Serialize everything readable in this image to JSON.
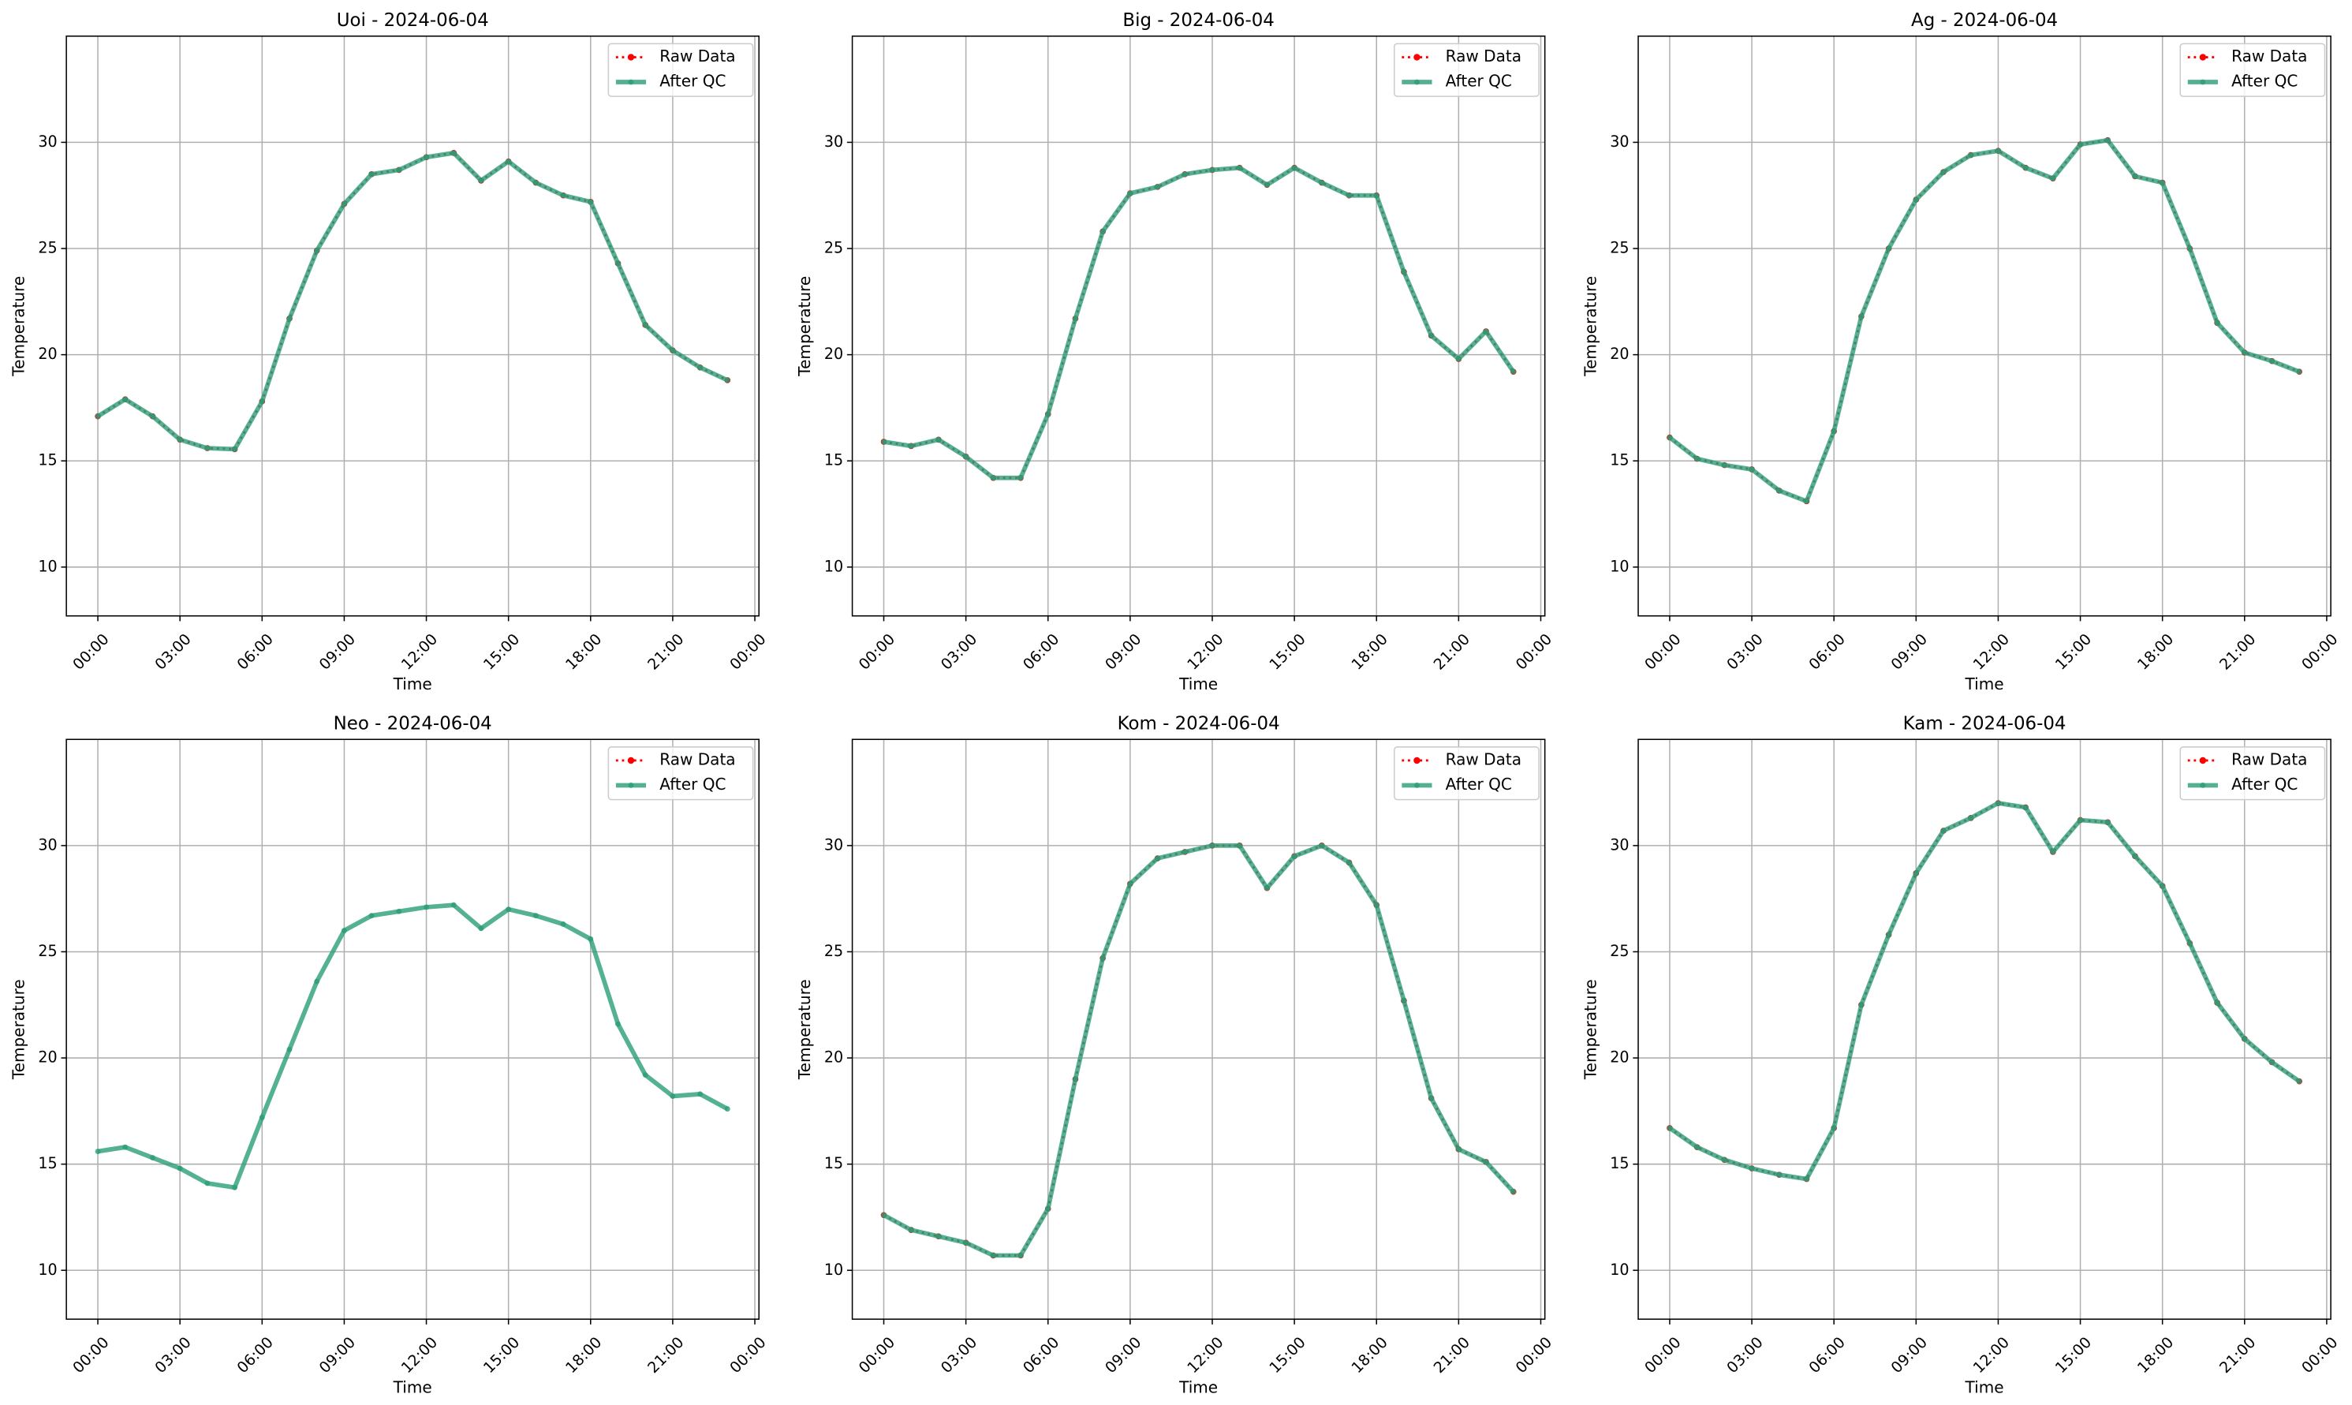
{
  "chart_data": [
    {
      "type": "line",
      "title": "Uoi - 2024-06-04",
      "xlabel": "Time",
      "ylabel": "Temperature",
      "x": [
        0,
        1,
        2,
        3,
        4,
        5,
        6,
        7,
        8,
        9,
        10,
        11,
        12,
        13,
        14,
        15,
        16,
        17,
        18,
        19,
        20,
        21,
        22,
        23
      ],
      "xlim": [
        -1.15,
        24.15
      ],
      "xticks": [
        {
          "value": 0,
          "label": "00:00"
        },
        {
          "value": 3,
          "label": "03:00"
        },
        {
          "value": 6,
          "label": "06:00"
        },
        {
          "value": 9,
          "label": "09:00"
        },
        {
          "value": 12,
          "label": "12:00"
        },
        {
          "value": 15,
          "label": "15:00"
        },
        {
          "value": 18,
          "label": "18:00"
        },
        {
          "value": 21,
          "label": "21:00"
        },
        {
          "value": 24,
          "label": "00:00"
        }
      ],
      "ylim": [
        7.7,
        35.0
      ],
      "yticks": [
        10,
        15,
        20,
        25,
        30
      ],
      "grid": true,
      "legend": "upper right",
      "series": [
        {
          "name": "Raw Data",
          "color": "#ff0000",
          "values": [
            17.1,
            17.9,
            17.1,
            16.0,
            15.6,
            15.55,
            17.8,
            21.7,
            24.9,
            27.1,
            28.5,
            28.7,
            29.3,
            29.5,
            28.2,
            29.1,
            28.1,
            27.5,
            27.2,
            24.3,
            21.4,
            20.2,
            19.4,
            18.8
          ]
        },
        {
          "name": "After QC",
          "color": "#2a9d78",
          "values": [
            17.1,
            17.9,
            17.1,
            16.0,
            15.6,
            15.55,
            17.8,
            21.7,
            24.9,
            27.1,
            28.5,
            28.7,
            29.3,
            29.5,
            28.2,
            29.1,
            28.1,
            27.5,
            27.2,
            24.3,
            21.4,
            20.2,
            19.4,
            18.8
          ]
        }
      ]
    },
    {
      "type": "line",
      "title": "Big - 2024-06-04",
      "xlabel": "Time",
      "ylabel": "Temperature",
      "x": [
        0,
        1,
        2,
        3,
        4,
        5,
        6,
        7,
        8,
        9,
        10,
        11,
        12,
        13,
        14,
        15,
        16,
        17,
        18,
        19,
        20,
        21,
        22,
        23
      ],
      "xlim": [
        -1.15,
        24.15
      ],
      "xticks": [
        {
          "value": 0,
          "label": "00:00"
        },
        {
          "value": 3,
          "label": "03:00"
        },
        {
          "value": 6,
          "label": "06:00"
        },
        {
          "value": 9,
          "label": "09:00"
        },
        {
          "value": 12,
          "label": "12:00"
        },
        {
          "value": 15,
          "label": "15:00"
        },
        {
          "value": 18,
          "label": "18:00"
        },
        {
          "value": 21,
          "label": "21:00"
        },
        {
          "value": 24,
          "label": "00:00"
        }
      ],
      "ylim": [
        7.7,
        35.0
      ],
      "yticks": [
        10,
        15,
        20,
        25,
        30
      ],
      "grid": true,
      "legend": "upper right",
      "series": [
        {
          "name": "Raw Data",
          "color": "#ff0000",
          "values": [
            15.9,
            15.7,
            16.0,
            15.2,
            14.2,
            14.2,
            17.2,
            21.7,
            25.8,
            27.6,
            27.9,
            28.5,
            28.7,
            28.8,
            28.0,
            28.8,
            28.1,
            27.5,
            27.5,
            23.9,
            20.9,
            19.8,
            21.1,
            19.2
          ]
        },
        {
          "name": "After QC",
          "color": "#2a9d78",
          "values": [
            15.9,
            15.7,
            16.0,
            15.2,
            14.2,
            14.2,
            17.2,
            21.7,
            25.8,
            27.6,
            27.9,
            28.5,
            28.7,
            28.8,
            28.0,
            28.8,
            28.1,
            27.5,
            27.5,
            23.9,
            20.9,
            19.8,
            21.1,
            19.2
          ]
        }
      ]
    },
    {
      "type": "line",
      "title": "Ag - 2024-06-04",
      "xlabel": "Time",
      "ylabel": "Temperature",
      "x": [
        0,
        1,
        2,
        3,
        4,
        5,
        6,
        7,
        8,
        9,
        10,
        11,
        12,
        13,
        14,
        15,
        16,
        17,
        18,
        19,
        20,
        21,
        22,
        23
      ],
      "xlim": [
        -1.15,
        24.15
      ],
      "xticks": [
        {
          "value": 0,
          "label": "00:00"
        },
        {
          "value": 3,
          "label": "03:00"
        },
        {
          "value": 6,
          "label": "06:00"
        },
        {
          "value": 9,
          "label": "09:00"
        },
        {
          "value": 12,
          "label": "12:00"
        },
        {
          "value": 15,
          "label": "15:00"
        },
        {
          "value": 18,
          "label": "18:00"
        },
        {
          "value": 21,
          "label": "21:00"
        },
        {
          "value": 24,
          "label": "00:00"
        }
      ],
      "ylim": [
        7.7,
        35.0
      ],
      "yticks": [
        10,
        15,
        20,
        25,
        30
      ],
      "grid": true,
      "legend": "upper right",
      "series": [
        {
          "name": "Raw Data",
          "color": "#ff0000",
          "values": [
            16.1,
            15.1,
            14.8,
            14.6,
            13.6,
            13.1,
            16.4,
            21.8,
            25.0,
            27.3,
            28.6,
            29.4,
            29.6,
            28.8,
            28.3,
            29.9,
            30.1,
            28.4,
            28.1,
            25.0,
            21.5,
            20.1,
            19.7,
            19.2
          ]
        },
        {
          "name": "After QC",
          "color": "#2a9d78",
          "values": [
            16.1,
            15.1,
            14.8,
            14.6,
            13.6,
            13.1,
            16.4,
            21.8,
            25.0,
            27.3,
            28.6,
            29.4,
            29.6,
            28.8,
            28.3,
            29.9,
            30.1,
            28.4,
            28.1,
            25.0,
            21.5,
            20.1,
            19.7,
            19.2
          ]
        }
      ]
    },
    {
      "type": "line",
      "title": "Neo - 2024-06-04",
      "xlabel": "Time",
      "ylabel": "Temperature",
      "x": [
        0,
        1,
        2,
        3,
        4,
        5,
        6,
        7,
        8,
        9,
        10,
        11,
        12,
        13,
        14,
        15,
        16,
        17,
        18,
        19,
        20,
        21,
        22,
        23
      ],
      "xlim": [
        -1.15,
        24.15
      ],
      "xticks": [
        {
          "value": 0,
          "label": "00:00"
        },
        {
          "value": 3,
          "label": "03:00"
        },
        {
          "value": 6,
          "label": "06:00"
        },
        {
          "value": 9,
          "label": "09:00"
        },
        {
          "value": 12,
          "label": "12:00"
        },
        {
          "value": 15,
          "label": "15:00"
        },
        {
          "value": 18,
          "label": "18:00"
        },
        {
          "value": 21,
          "label": "21:00"
        },
        {
          "value": 24,
          "label": "00:00"
        }
      ],
      "ylim": [
        7.7,
        35.0
      ],
      "yticks": [
        10,
        15,
        20,
        25,
        30
      ],
      "grid": true,
      "legend": "upper right",
      "series": [
        {
          "name": "Raw Data",
          "color": "#ff0000",
          "values": [
            null,
            null,
            null,
            null,
            null,
            null,
            null,
            null,
            null,
            null,
            null,
            null,
            null,
            null,
            null,
            null,
            null,
            null,
            null,
            null,
            null,
            null,
            null,
            null
          ]
        },
        {
          "name": "After QC",
          "color": "#2a9d78",
          "values": [
            15.6,
            15.8,
            15.3,
            14.8,
            14.1,
            13.9,
            17.2,
            20.4,
            23.6,
            26.0,
            26.7,
            26.9,
            27.1,
            27.2,
            26.1,
            27.0,
            26.7,
            26.3,
            25.6,
            21.6,
            19.2,
            18.2,
            18.3,
            17.6
          ]
        }
      ]
    },
    {
      "type": "line",
      "title": "Kom - 2024-06-04",
      "xlabel": "Time",
      "ylabel": "Temperature",
      "x": [
        0,
        1,
        2,
        3,
        4,
        5,
        6,
        7,
        8,
        9,
        10,
        11,
        12,
        13,
        14,
        15,
        16,
        17,
        18,
        19,
        20,
        21,
        22,
        23
      ],
      "xlim": [
        -1.15,
        24.15
      ],
      "xticks": [
        {
          "value": 0,
          "label": "00:00"
        },
        {
          "value": 3,
          "label": "03:00"
        },
        {
          "value": 6,
          "label": "06:00"
        },
        {
          "value": 9,
          "label": "09:00"
        },
        {
          "value": 12,
          "label": "12:00"
        },
        {
          "value": 15,
          "label": "15:00"
        },
        {
          "value": 18,
          "label": "18:00"
        },
        {
          "value": 21,
          "label": "21:00"
        },
        {
          "value": 24,
          "label": "00:00"
        }
      ],
      "ylim": [
        7.7,
        35.0
      ],
      "yticks": [
        10,
        15,
        20,
        25,
        30
      ],
      "grid": true,
      "legend": "upper right",
      "series": [
        {
          "name": "Raw Data",
          "color": "#ff0000",
          "values": [
            12.6,
            11.9,
            11.6,
            11.3,
            10.7,
            10.7,
            12.9,
            19.0,
            24.7,
            28.2,
            29.4,
            29.7,
            30.0,
            30.0,
            28.0,
            29.5,
            30.0,
            29.2,
            27.2,
            22.7,
            18.1,
            15.7,
            15.1,
            13.7
          ]
        },
        {
          "name": "After QC",
          "color": "#2a9d78",
          "values": [
            12.6,
            11.9,
            11.6,
            11.3,
            10.7,
            10.7,
            12.9,
            19.0,
            24.7,
            28.2,
            29.4,
            29.7,
            30.0,
            30.0,
            28.0,
            29.5,
            30.0,
            29.2,
            27.2,
            22.7,
            18.1,
            15.7,
            15.1,
            13.7
          ]
        }
      ]
    },
    {
      "type": "line",
      "title": "Kam - 2024-06-04",
      "xlabel": "Time",
      "ylabel": "Temperature",
      "x": [
        0,
        1,
        2,
        3,
        4,
        5,
        6,
        7,
        8,
        9,
        10,
        11,
        12,
        13,
        14,
        15,
        16,
        17,
        18,
        19,
        20,
        21,
        22,
        23
      ],
      "xlim": [
        -1.15,
        24.15
      ],
      "xticks": [
        {
          "value": 0,
          "label": "00:00"
        },
        {
          "value": 3,
          "label": "03:00"
        },
        {
          "value": 6,
          "label": "06:00"
        },
        {
          "value": 9,
          "label": "09:00"
        },
        {
          "value": 12,
          "label": "12:00"
        },
        {
          "value": 15,
          "label": "15:00"
        },
        {
          "value": 18,
          "label": "18:00"
        },
        {
          "value": 21,
          "label": "21:00"
        },
        {
          "value": 24,
          "label": "00:00"
        }
      ],
      "ylim": [
        7.7,
        35.0
      ],
      "yticks": [
        10,
        15,
        20,
        25,
        30
      ],
      "grid": true,
      "legend": "upper right",
      "series": [
        {
          "name": "Raw Data",
          "color": "#ff0000",
          "values": [
            16.7,
            15.8,
            15.2,
            14.8,
            14.5,
            14.3,
            16.7,
            22.5,
            25.8,
            28.7,
            30.7,
            31.3,
            32.0,
            31.8,
            29.7,
            31.2,
            31.1,
            29.5,
            28.1,
            25.4,
            22.6,
            20.9,
            19.8,
            18.9
          ]
        },
        {
          "name": "After QC",
          "color": "#2a9d78",
          "values": [
            16.7,
            15.8,
            15.2,
            14.8,
            14.5,
            14.3,
            16.7,
            22.5,
            25.8,
            28.7,
            30.7,
            31.3,
            32.0,
            31.8,
            29.7,
            31.2,
            31.1,
            29.5,
            28.1,
            25.4,
            22.6,
            20.9,
            19.8,
            18.9
          ]
        }
      ]
    }
  ]
}
